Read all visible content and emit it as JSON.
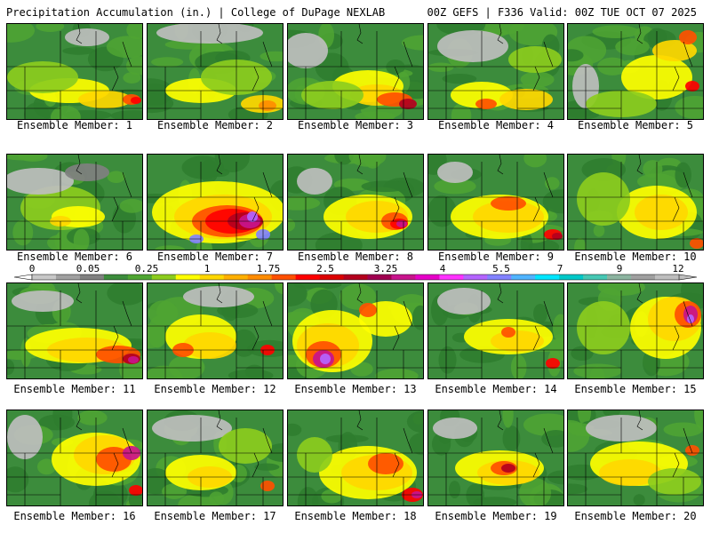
{
  "header": {
    "title": "Precipitation Accumulation (in.) | College of DuPage NEXLAB",
    "run": "00Z GEFS",
    "forecast_hour": "F336",
    "valid": "Valid: 00Z TUE OCT 07 2025"
  },
  "legend": {
    "levels": [
      "0",
      "0.05",
      "0.25",
      "1",
      "1.75",
      "2.5",
      "3.25",
      "4",
      "5.5",
      "7",
      "9",
      "12"
    ],
    "colors": [
      "#c8c8c8",
      "#a0a0a0",
      "#808080",
      "#3c8c3c",
      "#4fa532",
      "#8ccc1e",
      "#ffff00",
      "#ffd700",
      "#ffb000",
      "#ff8c00",
      "#ff5000",
      "#ff0000",
      "#dc0000",
      "#b4001e",
      "#a00050",
      "#c8148c",
      "#e600c8",
      "#ff32ff",
      "#b464ff",
      "#8282ff",
      "#50b4ff",
      "#00e6ff",
      "#00c8c8",
      "#46c8b4",
      "#8cb4a0",
      "#a0a0a0",
      "#bebebe"
    ]
  },
  "panels": [
    {
      "label": "Ensemble Member: 1"
    },
    {
      "label": "Ensemble Member: 2"
    },
    {
      "label": "Ensemble Member: 3"
    },
    {
      "label": "Ensemble Member: 4"
    },
    {
      "label": "Ensemble Member: 5"
    },
    {
      "label": "Ensemble Member: 6"
    },
    {
      "label": "Ensemble Member: 7"
    },
    {
      "label": "Ensemble Member: 8"
    },
    {
      "label": "Ensemble Member: 9"
    },
    {
      "label": "Ensemble Member: 10"
    },
    {
      "label": "Ensemble Member: 11"
    },
    {
      "label": "Ensemble Member: 12"
    },
    {
      "label": "Ensemble Member: 13"
    },
    {
      "label": "Ensemble Member: 14"
    },
    {
      "label": "Ensemble Member: 15"
    },
    {
      "label": "Ensemble Member: 16"
    },
    {
      "label": "Ensemble Member: 17"
    },
    {
      "label": "Ensemble Member: 18"
    },
    {
      "label": "Ensemble Member: 19"
    },
    {
      "label": "Ensemble Member: 20"
    }
  ]
}
